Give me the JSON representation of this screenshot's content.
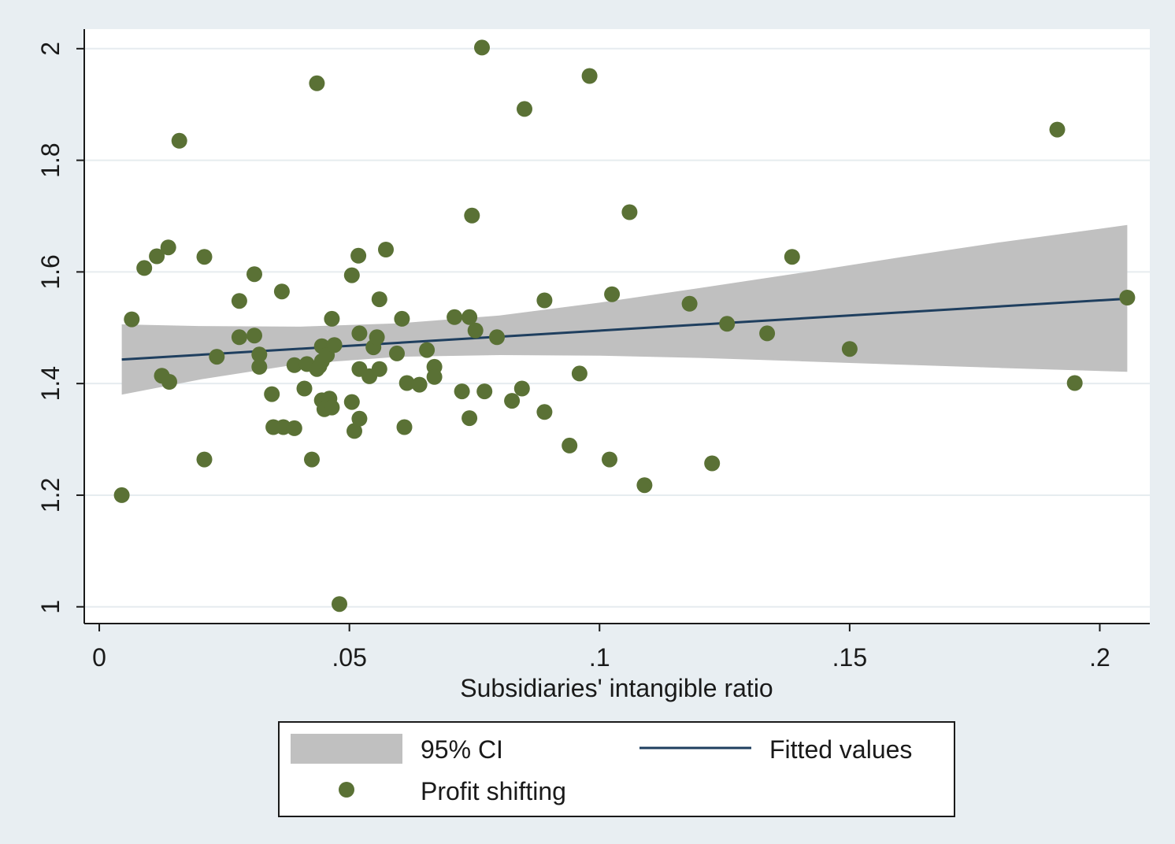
{
  "chart_data": {
    "type": "scatter",
    "title": "",
    "xlabel": "Subsidiaries' intangible ratio",
    "ylabel": "",
    "xlim": [
      -0.003,
      0.21
    ],
    "ylim": [
      0.97,
      2.035
    ],
    "grid": true,
    "x_ticks": [
      0,
      0.05,
      0.1,
      0.15,
      0.2
    ],
    "x_tick_labels": [
      "0",
      ".05",
      ".1",
      ".15",
      ".2"
    ],
    "y_ticks": [
      1,
      1.2,
      1.4,
      1.6,
      1.8,
      2
    ],
    "y_tick_labels": [
      "1",
      "1.2",
      "1.4",
      "1.6",
      "1.8",
      "2"
    ],
    "legend_position": "bottom",
    "series": [
      {
        "name": "95% CI",
        "type": "area",
        "color": "#c0c0c0",
        "x": [
          0.0045,
          0.02,
          0.04,
          0.06,
          0.08,
          0.1,
          0.12,
          0.14,
          0.16,
          0.18,
          0.2055
        ],
        "lower": [
          1.38,
          1.407,
          1.435,
          1.448,
          1.451,
          1.45,
          1.446,
          1.44,
          1.434,
          1.428,
          1.421
        ],
        "upper": [
          1.506,
          1.503,
          1.502,
          1.508,
          1.522,
          1.545,
          1.571,
          1.598,
          1.626,
          1.653,
          1.684
        ]
      },
      {
        "name": "Fitted values",
        "type": "line",
        "color": "#1f3f5f",
        "x": [
          0.0045,
          0.2055
        ],
        "y": [
          1.443,
          1.552
        ]
      },
      {
        "name": "Profit shifting",
        "type": "scatter",
        "color": "#5a7135",
        "points": [
          [
            0.0045,
            1.2
          ],
          [
            0.0065,
            1.515
          ],
          [
            0.009,
            1.607
          ],
          [
            0.0115,
            1.628
          ],
          [
            0.0125,
            1.414
          ],
          [
            0.0138,
            1.644
          ],
          [
            0.014,
            1.403
          ],
          [
            0.016,
            1.835
          ],
          [
            0.021,
            1.264
          ],
          [
            0.021,
            1.627
          ],
          [
            0.0235,
            1.448
          ],
          [
            0.028,
            1.548
          ],
          [
            0.028,
            1.483
          ],
          [
            0.031,
            1.596
          ],
          [
            0.031,
            1.486
          ],
          [
            0.032,
            1.452
          ],
          [
            0.032,
            1.43
          ],
          [
            0.0345,
            1.381
          ],
          [
            0.0348,
            1.322
          ],
          [
            0.0365,
            1.565
          ],
          [
            0.0368,
            1.322
          ],
          [
            0.039,
            1.32
          ],
          [
            0.039,
            1.433
          ],
          [
            0.041,
            1.391
          ],
          [
            0.0415,
            1.435
          ],
          [
            0.0425,
            1.264
          ],
          [
            0.0435,
            1.426
          ],
          [
            0.0435,
            1.938
          ],
          [
            0.044,
            1.431
          ],
          [
            0.0445,
            1.37
          ],
          [
            0.0445,
            1.44
          ],
          [
            0.0445,
            1.467
          ],
          [
            0.045,
            1.354
          ],
          [
            0.0455,
            1.451
          ],
          [
            0.046,
            1.373
          ],
          [
            0.0465,
            1.516
          ],
          [
            0.0465,
            1.357
          ],
          [
            0.047,
            1.469
          ],
          [
            0.048,
            1.005
          ],
          [
            0.0505,
            1.594
          ],
          [
            0.0505,
            1.367
          ],
          [
            0.051,
            1.315
          ],
          [
            0.0518,
            1.629
          ],
          [
            0.052,
            1.49
          ],
          [
            0.052,
            1.426
          ],
          [
            0.052,
            1.337
          ],
          [
            0.054,
            1.413
          ],
          [
            0.0548,
            1.465
          ],
          [
            0.0555,
            1.483
          ],
          [
            0.056,
            1.551
          ],
          [
            0.056,
            1.426
          ],
          [
            0.0573,
            1.64
          ],
          [
            0.0595,
            1.454
          ],
          [
            0.0605,
            1.516
          ],
          [
            0.061,
            1.322
          ],
          [
            0.0615,
            1.401
          ],
          [
            0.064,
            1.398
          ],
          [
            0.0655,
            1.46
          ],
          [
            0.067,
            1.43
          ],
          [
            0.067,
            1.412
          ],
          [
            0.071,
            1.519
          ],
          [
            0.0725,
            1.386
          ],
          [
            0.074,
            1.519
          ],
          [
            0.074,
            1.338
          ],
          [
            0.0745,
            1.701
          ],
          [
            0.0752,
            1.495
          ],
          [
            0.0765,
            2.002
          ],
          [
            0.077,
            1.386
          ],
          [
            0.0795,
            1.483
          ],
          [
            0.0825,
            1.369
          ],
          [
            0.0845,
            1.391
          ],
          [
            0.085,
            1.892
          ],
          [
            0.089,
            1.549
          ],
          [
            0.089,
            1.349
          ],
          [
            0.094,
            1.289
          ],
          [
            0.096,
            1.418
          ],
          [
            0.098,
            1.951
          ],
          [
            0.102,
            1.264
          ],
          [
            0.1025,
            1.56
          ],
          [
            0.106,
            1.707
          ],
          [
            0.109,
            1.218
          ],
          [
            0.118,
            1.543
          ],
          [
            0.1225,
            1.257
          ],
          [
            0.1255,
            1.507
          ],
          [
            0.1335,
            1.49
          ],
          [
            0.1385,
            1.627
          ],
          [
            0.15,
            1.462
          ],
          [
            0.1915,
            1.855
          ],
          [
            0.195,
            1.401
          ],
          [
            0.2055,
            1.554
          ]
        ]
      }
    ]
  }
}
